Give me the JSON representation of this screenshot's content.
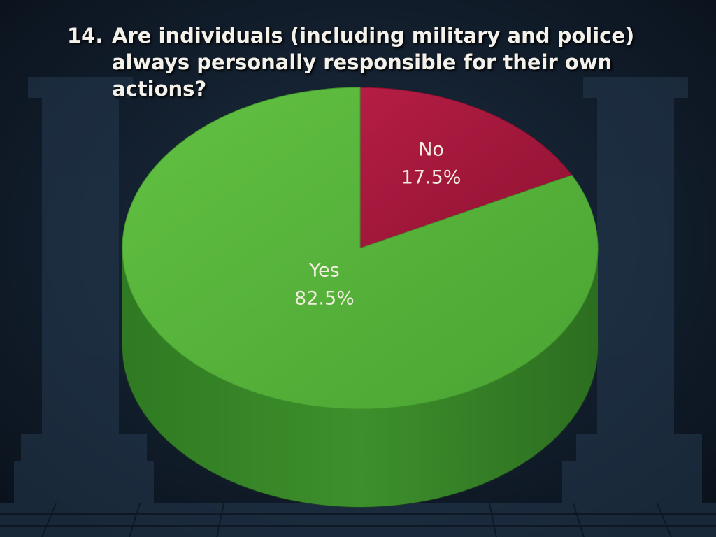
{
  "title": {
    "number": "14.",
    "question": "Are individuals (including military and police) always personally responsible for their own actions?"
  },
  "colors": {
    "yes": "#55b53a",
    "no": "#a3163a",
    "background": "#0f1a26"
  },
  "chart_data": {
    "type": "pie",
    "title": "14. Are individuals (including military and police) always personally responsible for their own actions?",
    "slices": [
      {
        "label": "No",
        "value": 17.5,
        "value_text": "17.5%",
        "color": "#a3163a"
      },
      {
        "label": "Yes",
        "value": 82.5,
        "value_text": "82.5%",
        "color": "#55b53a"
      }
    ],
    "start_angle": "12 o'clock, clockwise",
    "legend": "none",
    "style": "3d-tilted"
  }
}
